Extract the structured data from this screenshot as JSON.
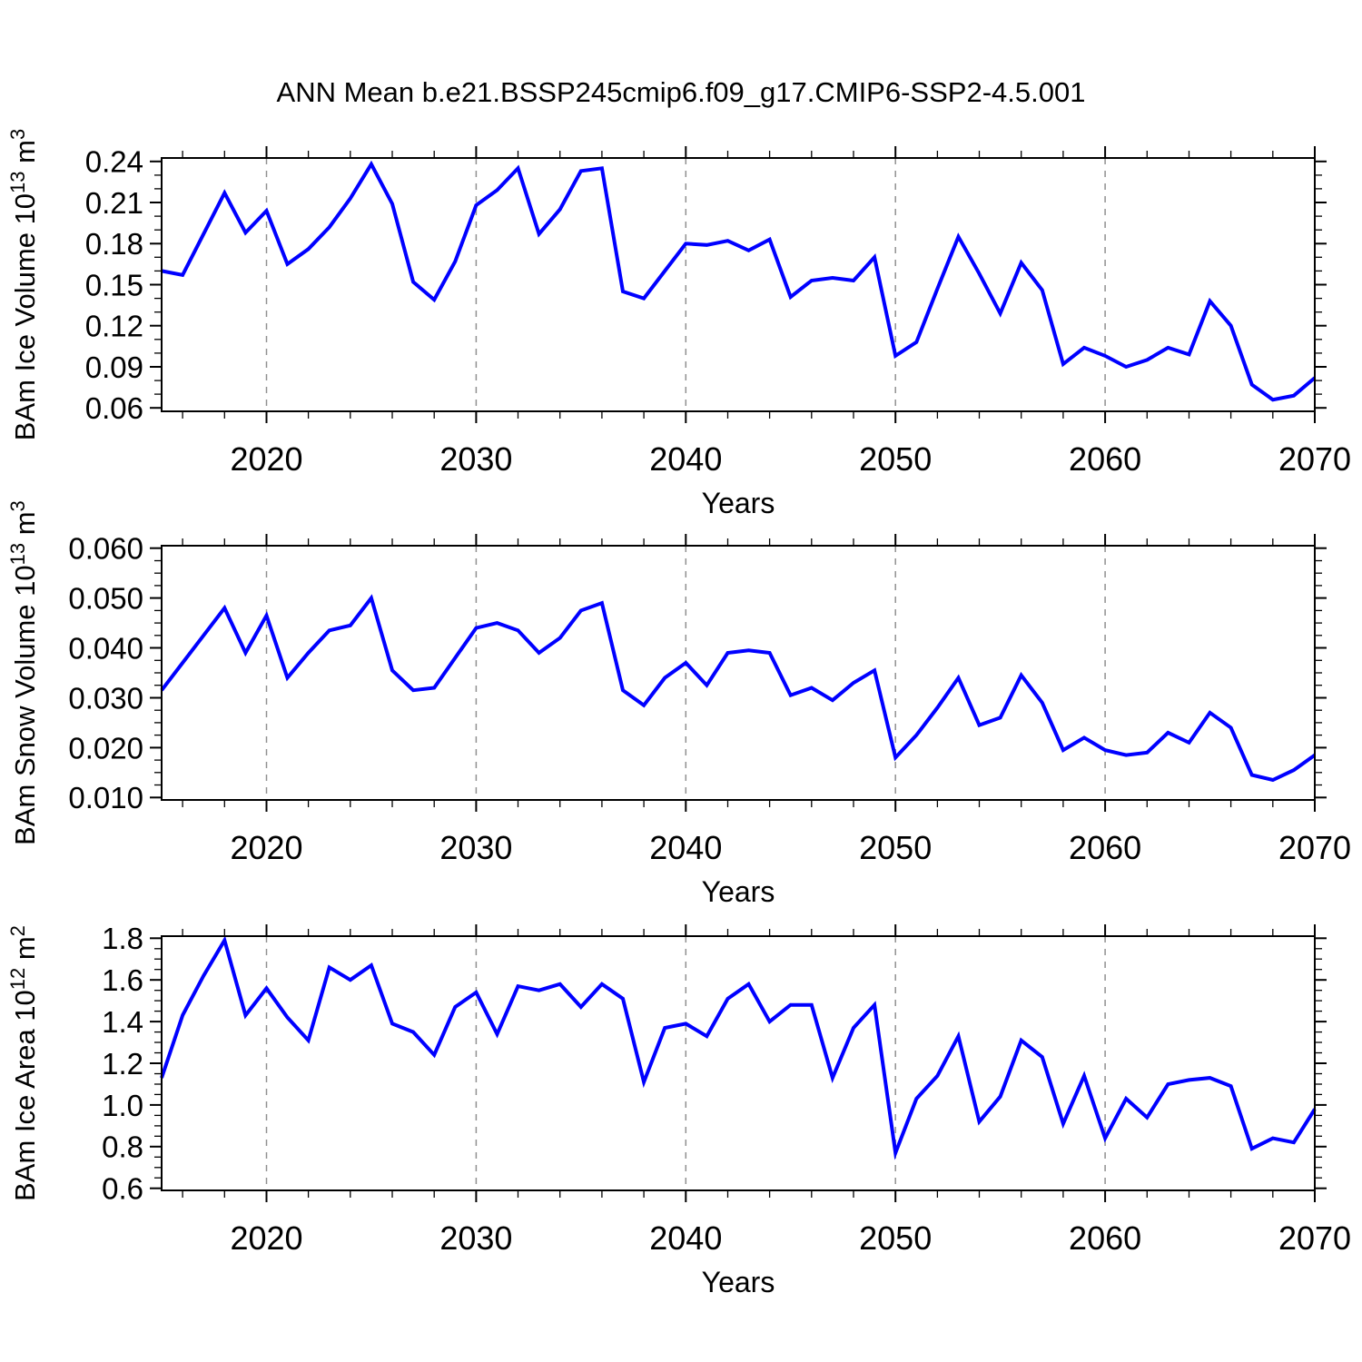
{
  "title": "ANN Mean b.e21.BSSP245cmip6.f09_g17.CMIP6-SSP2-4.5.001",
  "colors": {
    "line": "#0000ff",
    "grid": "#909090",
    "axis": "#000000",
    "background": "#ffffff"
  },
  "years": [
    2015,
    2016,
    2017,
    2018,
    2019,
    2020,
    2021,
    2022,
    2023,
    2024,
    2025,
    2026,
    2027,
    2028,
    2029,
    2030,
    2031,
    2032,
    2033,
    2034,
    2035,
    2036,
    2037,
    2038,
    2039,
    2040,
    2041,
    2042,
    2043,
    2044,
    2045,
    2046,
    2047,
    2048,
    2049,
    2050,
    2051,
    2052,
    2053,
    2054,
    2055,
    2056,
    2057,
    2058,
    2059,
    2060,
    2061,
    2062,
    2063,
    2064,
    2065,
    2066,
    2067,
    2068,
    2069,
    2070
  ],
  "chart_data": [
    {
      "type": "line",
      "name": "ice-volume",
      "ylabel_parts": [
        {
          "t": "BAm Ice Volume 10"
        },
        {
          "t": "13",
          "sup": true
        },
        {
          "t": " m"
        },
        {
          "t": "3",
          "sup": true
        }
      ],
      "xlabel": "Years",
      "values": [
        0.16,
        0.157,
        0.187,
        0.217,
        0.188,
        0.204,
        0.165,
        0.176,
        0.192,
        0.213,
        0.238,
        0.209,
        0.152,
        0.139,
        0.167,
        0.208,
        0.219,
        0.235,
        0.187,
        0.205,
        0.233,
        0.235,
        0.145,
        0.14,
        0.16,
        0.18,
        0.179,
        0.182,
        0.175,
        0.183,
        0.141,
        0.153,
        0.155,
        0.153,
        0.17,
        0.098,
        0.108,
        0.147,
        0.185,
        0.158,
        0.129,
        0.166,
        0.146,
        0.092,
        0.104,
        0.098,
        0.09,
        0.095,
        0.104,
        0.099,
        0.138,
        0.12,
        0.077,
        0.066,
        0.069,
        0.082
      ],
      "xlim": [
        2015,
        2070
      ],
      "ylim": [
        0.0575,
        0.2425
      ],
      "xticks": [
        2020,
        2030,
        2040,
        2050,
        2060,
        2070
      ],
      "xtick_labels": [
        "2020",
        "2030",
        "2040",
        "2050",
        "2060",
        "2070"
      ],
      "x_minor_step": 2,
      "yticks": [
        0.06,
        0.09,
        0.12,
        0.15,
        0.18,
        0.21,
        0.24
      ],
      "ytick_labels": [
        "0.06",
        "0.09",
        "0.12",
        "0.15",
        "0.18",
        "0.21",
        "0.24"
      ],
      "y_minor_step": 0.01,
      "grid_x": [
        2020,
        2030,
        2040,
        2050,
        2060
      ],
      "grid_style": "dashed",
      "legend": "none"
    },
    {
      "type": "line",
      "name": "snow-volume",
      "ylabel_parts": [
        {
          "t": "BAm Snow Volume 10"
        },
        {
          "t": "13",
          "sup": true
        },
        {
          "t": " m"
        },
        {
          "t": "3",
          "sup": true
        }
      ],
      "xlabel": "Years",
      "values": [
        0.0315,
        0.037,
        0.0425,
        0.048,
        0.039,
        0.0465,
        0.034,
        0.039,
        0.0435,
        0.0445,
        0.05,
        0.0355,
        0.0315,
        0.032,
        0.038,
        0.044,
        0.045,
        0.0435,
        0.039,
        0.042,
        0.0475,
        0.049,
        0.0315,
        0.0285,
        0.034,
        0.037,
        0.0325,
        0.039,
        0.0395,
        0.039,
        0.0305,
        0.032,
        0.0295,
        0.033,
        0.0355,
        0.018,
        0.0225,
        0.028,
        0.034,
        0.0245,
        0.026,
        0.0345,
        0.029,
        0.0195,
        0.022,
        0.0195,
        0.0185,
        0.019,
        0.023,
        0.021,
        0.027,
        0.024,
        0.0145,
        0.0135,
        0.0155,
        0.0185
      ],
      "xlim": [
        2015,
        2070
      ],
      "ylim": [
        0.0095,
        0.0605
      ],
      "xticks": [
        2020,
        2030,
        2040,
        2050,
        2060,
        2070
      ],
      "xtick_labels": [
        "2020",
        "2030",
        "2040",
        "2050",
        "2060",
        "2070"
      ],
      "x_minor_step": 2,
      "yticks": [
        0.01,
        0.02,
        0.03,
        0.04,
        0.05,
        0.06
      ],
      "ytick_labels": [
        "0.010",
        "0.020",
        "0.030",
        "0.040",
        "0.050",
        "0.060"
      ],
      "y_minor_step": 0.0025,
      "grid_x": [
        2020,
        2030,
        2040,
        2050,
        2060
      ],
      "grid_style": "dashed",
      "legend": "none"
    },
    {
      "type": "line",
      "name": "ice-area",
      "ylabel_parts": [
        {
          "t": "BAm Ice Area 10"
        },
        {
          "t": "12",
          "sup": true
        },
        {
          "t": " m"
        },
        {
          "t": "2",
          "sup": true
        }
      ],
      "xlabel": "Years",
      "values": [
        1.13,
        1.43,
        1.62,
        1.79,
        1.43,
        1.56,
        1.42,
        1.31,
        1.66,
        1.6,
        1.67,
        1.39,
        1.35,
        1.24,
        1.47,
        1.54,
        1.34,
        1.57,
        1.55,
        1.58,
        1.47,
        1.58,
        1.51,
        1.11,
        1.37,
        1.39,
        1.33,
        1.51,
        1.58,
        1.4,
        1.48,
        1.48,
        1.13,
        1.37,
        1.48,
        0.77,
        1.03,
        1.14,
        1.33,
        0.92,
        1.04,
        1.31,
        1.23,
        0.91,
        1.14,
        0.84,
        1.03,
        0.94,
        1.1,
        1.12,
        1.13,
        1.09,
        0.79,
        0.84,
        0.82,
        0.98
      ],
      "xlim": [
        2015,
        2070
      ],
      "ylim": [
        0.59,
        1.81
      ],
      "xticks": [
        2020,
        2030,
        2040,
        2050,
        2060,
        2070
      ],
      "xtick_labels": [
        "2020",
        "2030",
        "2040",
        "2050",
        "2060",
        "2070"
      ],
      "x_minor_step": 2,
      "yticks": [
        0.6,
        0.8,
        1.0,
        1.2,
        1.4,
        1.6,
        1.8
      ],
      "ytick_labels": [
        "0.6",
        "0.8",
        "1.0",
        "1.2",
        "1.4",
        "1.6",
        "1.8"
      ],
      "y_minor_step": 0.05,
      "grid_x": [
        2020,
        2030,
        2040,
        2050,
        2060
      ],
      "grid_style": "dashed",
      "legend": "none"
    }
  ]
}
